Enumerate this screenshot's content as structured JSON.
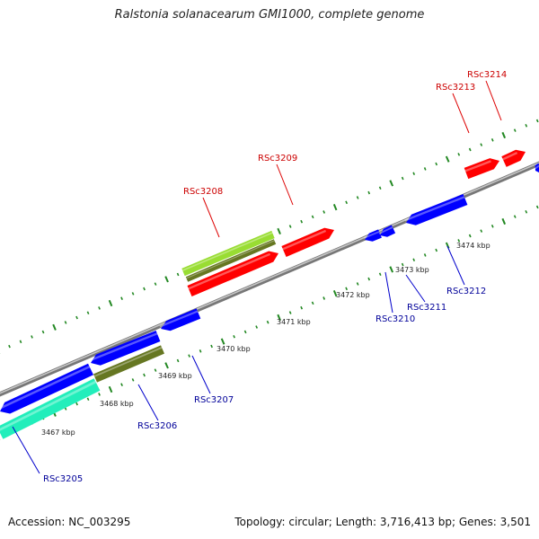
{
  "title": "Ralstonia solanacearum GMI1000, complete genome",
  "footer": {
    "accession": "Accession: NC_003295",
    "summary": "Topology: circular; Length: 3,716,413 bp; Genes: 3,501"
  },
  "colors": {
    "forward_gene": "#ff0000",
    "reverse_gene": "#0000ff",
    "forward_label": "#cc0000",
    "reverse_label": "#000099",
    "highlight_light": "#99dd33",
    "highlight_dark": "#667722",
    "highlight_cyan": "#22eebb",
    "axis": "#888888",
    "ticks": "#228822"
  },
  "scale_labels": [
    "3467 kbp",
    "3468 kbp",
    "3469 kbp",
    "3470 kbp",
    "3471 kbp",
    "3472 kbp",
    "3473 kbp",
    "3474 kbp"
  ],
  "genes": [
    {
      "id": "RSc3205",
      "strand": "reverse"
    },
    {
      "id": "RSc3206",
      "strand": "reverse"
    },
    {
      "id": "RSc3207",
      "strand": "reverse"
    },
    {
      "id": "RSc3208",
      "strand": "forward"
    },
    {
      "id": "RSc3209",
      "strand": "forward"
    },
    {
      "id": "RSc3210",
      "strand": "reverse"
    },
    {
      "id": "RSc3211",
      "strand": "reverse"
    },
    {
      "id": "RSc3212",
      "strand": "reverse"
    },
    {
      "id": "RSc3213",
      "strand": "forward"
    },
    {
      "id": "RSc3214",
      "strand": "forward"
    }
  ]
}
